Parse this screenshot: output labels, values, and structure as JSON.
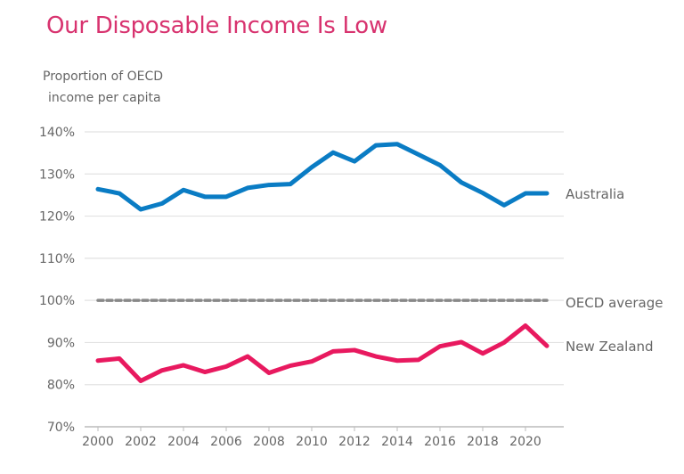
{
  "chart_data": {
    "type": "line",
    "title": "Our Disposable Income Is Low",
    "ylabel_lines": [
      "Proportion of OECD",
      "income per capita"
    ],
    "x": [
      2000,
      2001,
      2002,
      2003,
      2004,
      2005,
      2006,
      2007,
      2008,
      2009,
      2010,
      2011,
      2012,
      2013,
      2014,
      2015,
      2016,
      2017,
      2018,
      2019,
      2020,
      2021
    ],
    "xticks": [
      "2000",
      "2002",
      "2004",
      "2006",
      "2008",
      "2010",
      "2012",
      "2014",
      "2016",
      "2018",
      "2020"
    ],
    "yticks": [
      "70%",
      "80%",
      "90%",
      "100%",
      "110%",
      "120%",
      "130%",
      "140%"
    ],
    "ylim": [
      70,
      140
    ],
    "grid": true,
    "series": [
      {
        "name": "Australia",
        "color": "#0a7cc4",
        "values": [
          126.4,
          125.4,
          121.6,
          123.0,
          126.2,
          124.6,
          124.6,
          126.7,
          127.4,
          127.6,
          131.6,
          135.1,
          133.0,
          136.8,
          137.1,
          134.6,
          132.1,
          128.0,
          125.5,
          122.6,
          125.4,
          125.4
        ]
      },
      {
        "name": "OECD average",
        "color": "#888888",
        "dashed": true,
        "values": [
          100,
          100,
          100,
          100,
          100,
          100,
          100,
          100,
          100,
          100,
          100,
          100,
          100,
          100,
          100,
          100,
          100,
          100,
          100,
          100,
          100,
          100
        ]
      },
      {
        "name": "New Zealand",
        "color": "#e8195f",
        "values": [
          85.7,
          86.2,
          80.9,
          83.4,
          84.6,
          83.0,
          84.3,
          86.7,
          82.8,
          84.5,
          85.5,
          87.9,
          88.2,
          86.7,
          85.7,
          85.9,
          89.1,
          90.1,
          87.4,
          90.0,
          94.0,
          89.2
        ]
      }
    ]
  }
}
